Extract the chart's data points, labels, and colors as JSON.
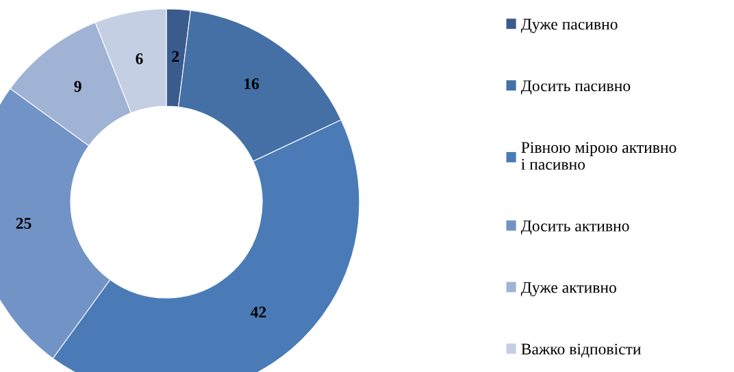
{
  "chart_data": {
    "type": "donut",
    "categories": [
      "Дуже пасивно",
      "Досить пасивно",
      "Рівною мірою активно\nі пасивно",
      "Досить активно",
      "Дуже активно",
      "Важко відповісти"
    ],
    "values": [
      2,
      16,
      42,
      25,
      9,
      6
    ],
    "colors": [
      "#3b5b8d",
      "#4470a6",
      "#4a7bb7",
      "#7293c6",
      "#a0b3d5",
      "#c4cfe4"
    ],
    "data_labels": true,
    "legend": "right"
  }
}
